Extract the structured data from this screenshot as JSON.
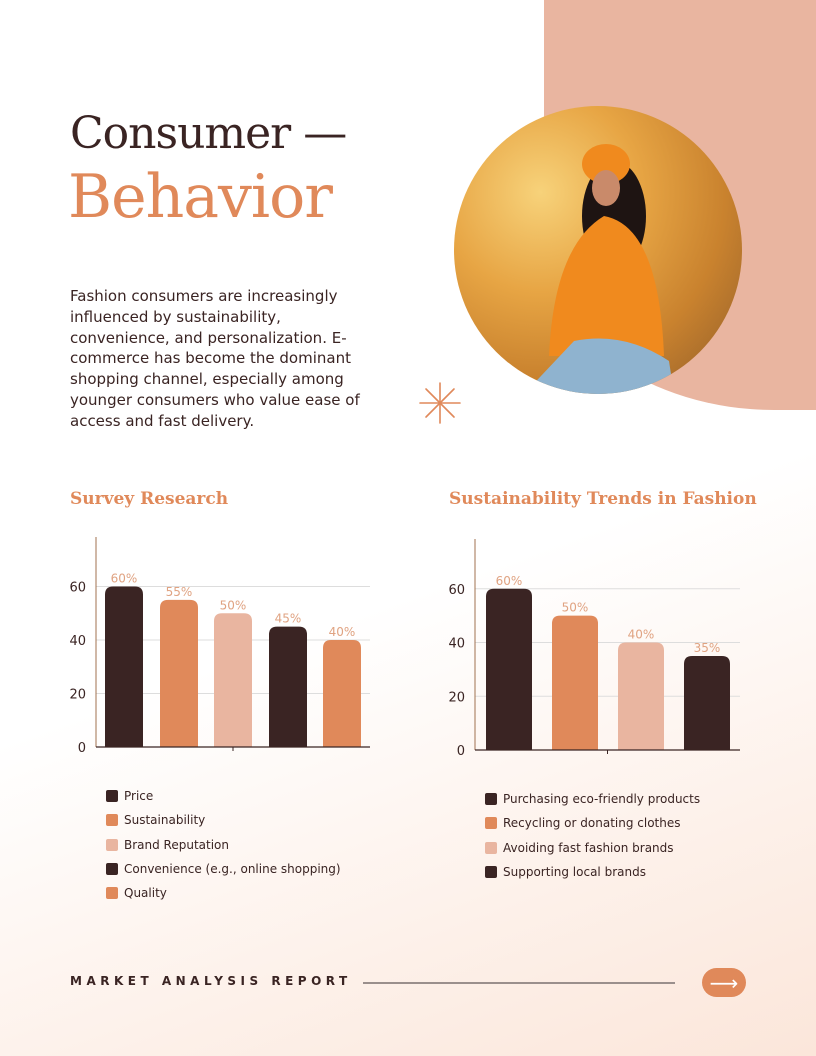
{
  "header": {
    "title_line1": "Consumer —",
    "title_line2": "Behavior"
  },
  "intro": "Fashion consumers are increasingly influenced by sustainability, convenience, and personalization. E-commerce has become the dominant shopping channel, especially among younger consumers who value ease of access and fast delivery.",
  "colors": {
    "dark": "#3a2423",
    "orange": "#e0895a",
    "peach": "#e9b5a0"
  },
  "chart_data": [
    {
      "type": "bar",
      "title": "Survey Research",
      "categories": [
        "Price",
        "Sustainability",
        "Brand Reputation",
        "Convenience (e.g., online shopping)",
        "Quality"
      ],
      "values": [
        60,
        55,
        50,
        45,
        40
      ],
      "data_labels": [
        "60%",
        "55%",
        "50%",
        "45%",
        "40%"
      ],
      "colors": [
        "#3a2423",
        "#e0895a",
        "#e9b5a0",
        "#3a2423",
        "#e0895a"
      ],
      "yticks": [
        0,
        20,
        40,
        60
      ],
      "ylim": [
        0,
        80
      ],
      "grid": true,
      "legend": "bottom"
    },
    {
      "type": "bar",
      "title": "Sustainability Trends in Fashion",
      "categories": [
        "Purchasing eco-friendly products",
        "Recycling or donating clothes",
        "Avoiding fast fashion brands",
        "Supporting local brands"
      ],
      "values": [
        60,
        50,
        40,
        35
      ],
      "data_labels": [
        "60%",
        "50%",
        "40%",
        "35%"
      ],
      "colors": [
        "#3a2423",
        "#e0895a",
        "#e9b5a0",
        "#3a2423"
      ],
      "yticks": [
        0,
        20,
        40,
        60
      ],
      "ylim": [
        0,
        80
      ],
      "grid": true,
      "legend": "bottom"
    }
  ],
  "footer": {
    "label": "MARKET ANALYSIS REPORT",
    "next_icon": "arrow-right-icon"
  }
}
